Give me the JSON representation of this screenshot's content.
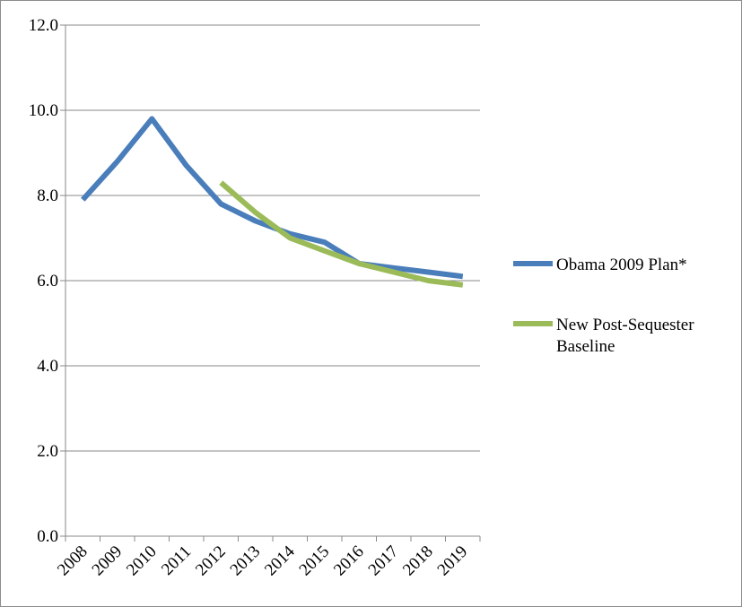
{
  "chart_data": {
    "type": "line",
    "title": "",
    "xlabel": "",
    "ylabel": "",
    "categories": [
      "2008",
      "2009",
      "2010",
      "2011",
      "2012",
      "2013",
      "2014",
      "2015",
      "2016",
      "2017",
      "2018",
      "2019"
    ],
    "y_ticks": [
      "0.0",
      "2.0",
      "4.0",
      "6.0",
      "8.0",
      "10.0",
      "12.0"
    ],
    "ylim": [
      0,
      12
    ],
    "grid": true,
    "legend_position": "right",
    "series": [
      {
        "name": "Obama 2009 Plan*",
        "color": "#4a7ebb",
        "values": [
          7.9,
          8.8,
          9.8,
          8.7,
          7.8,
          7.4,
          7.1,
          6.9,
          6.4,
          6.3,
          6.2,
          6.1
        ]
      },
      {
        "name_lines": [
          "New Post-Sequester",
          "Baseline"
        ],
        "color": "#9bbb59",
        "values": [
          null,
          null,
          null,
          null,
          8.3,
          7.6,
          7.0,
          6.7,
          6.4,
          6.2,
          6.0,
          5.9
        ]
      }
    ]
  }
}
